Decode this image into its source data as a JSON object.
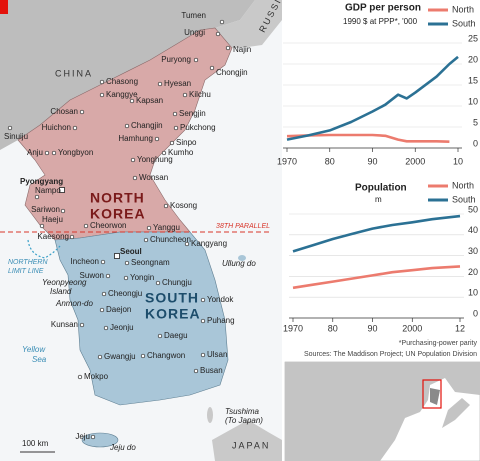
{
  "map": {
    "countries": {
      "china": "CHINA",
      "russia": "RUSSIA",
      "japan": "JAPAN"
    },
    "north_korea_label": [
      "NORTH",
      "KOREA"
    ],
    "south_korea_label": [
      "SOUTH",
      "KOREA"
    ],
    "parallel_label": "38TH PARALLEL",
    "nll_label": [
      "NORTHERN",
      "LIMIT LINE"
    ],
    "sea_label": [
      "Yellow",
      "Sea"
    ],
    "island_labels": {
      "yeonpyeong": [
        "Yeonpyeong",
        "Island"
      ],
      "anmyon": "Anmon-do",
      "ullung": "Ullung do",
      "tsushima": [
        "Tsushima",
        "(To Japan)"
      ],
      "jeju_do": "Jeju do"
    },
    "scale_label": "100 km",
    "cities": [
      "Tumen",
      "Unggi",
      "Najin",
      "Puryong",
      "Chongjin",
      "Chasong",
      "Kanggye",
      "Hyesan",
      "Kilchu",
      "Chosan",
      "Kapsan",
      "Sengjin",
      "Huichon",
      "Changjin",
      "Pukchong",
      "Sinuiju",
      "Hamhung",
      "Sinpo",
      "Anju",
      "Yongbyon",
      "Kumho",
      "Yonghung",
      "Pyongyang",
      "Wonsan",
      "Nampo",
      "Sariwon",
      "Haeju",
      "Kosong",
      "Kaesong",
      "Cheorwon",
      "Yanggu",
      "Chuncheon",
      "Kangyang",
      "Incheon",
      "Seoul",
      "Seongnam",
      "Suwon",
      "Yongin",
      "Chungju",
      "Cheongju",
      "Daejon",
      "Yondok",
      "Puhang",
      "Daegu",
      "Jeonju",
      "Kunsan",
      "Gwangju",
      "Changwon",
      "Ulsan",
      "Busan",
      "Mokpo",
      "Jeju"
    ]
  },
  "chart_data": [
    {
      "type": "line",
      "title": "GDP per person",
      "subtitle": "1990 $ at PPP*, '000",
      "x": [
        1970,
        1975,
        1980,
        1985,
        1990,
        1993,
        1996,
        1998,
        2000,
        2005,
        2008,
        2010
      ],
      "series": [
        {
          "name": "North",
          "color": "#ec7b6e",
          "values": [
            2.8,
            3.0,
            3.1,
            3.1,
            3.1,
            2.9,
            2.0,
            1.6,
            1.6,
            1.6,
            1.5,
            null
          ]
        },
        {
          "name": "South",
          "color": "#2b7194",
          "values": [
            2.0,
            3.0,
            4.2,
            6.2,
            8.7,
            10.3,
            12.7,
            11.8,
            13.2,
            17.0,
            20.0,
            21.7
          ]
        }
      ],
      "xlim": [
        1970,
        2010
      ],
      "xticks": [
        1970,
        {
          "value": 1980,
          "label": "80"
        },
        {
          "value": 1990,
          "label": "90"
        },
        2000,
        {
          "value": 2010,
          "label": "10"
        }
      ],
      "ylim": [
        0,
        25
      ],
      "yticks": [
        0,
        5,
        10,
        15,
        20,
        25
      ],
      "grid": true,
      "legend": "top-right"
    },
    {
      "type": "line",
      "title": "Population",
      "subtitle": "m",
      "x": [
        1970,
        1975,
        1980,
        1985,
        1990,
        1995,
        2000,
        2005,
        2012
      ],
      "series": [
        {
          "name": "North",
          "color": "#ec7b6e",
          "values": [
            14.5,
            16,
            17.5,
            19,
            20.5,
            22,
            23,
            24,
            24.8
          ]
        },
        {
          "name": "South",
          "color": "#2b7194",
          "values": [
            32,
            35,
            38,
            40.5,
            43,
            44.7,
            46,
            47.5,
            49
          ]
        }
      ],
      "xlim": [
        1970,
        2012
      ],
      "xticks": [
        1970,
        {
          "value": 1980,
          "label": "80"
        },
        {
          "value": 1990,
          "label": "90"
        },
        2000,
        {
          "value": 2012,
          "label": "12"
        }
      ],
      "ylim": [
        0,
        50
      ],
      "yticks": [
        0,
        10,
        20,
        30,
        40,
        50
      ],
      "grid": true,
      "legend": "top-right"
    }
  ],
  "notes": [
    "*Purchasing-power parity",
    "Sources: The Maddison Project; UN Population Division"
  ]
}
